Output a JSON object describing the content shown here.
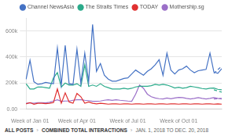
{
  "chart_data": {
    "type": "line",
    "categories": [
      null,
      "Week of Jan 01",
      null,
      null,
      null,
      null,
      null,
      null,
      null,
      null,
      null,
      null,
      null,
      "Week of Apr 01",
      null,
      null,
      null,
      null,
      null,
      null,
      null,
      null,
      null,
      null,
      null,
      null,
      "Week of Jul 01",
      null,
      null,
      null,
      null,
      null,
      null,
      null,
      null,
      null,
      null,
      null,
      null,
      "Week of Oct 01",
      null,
      null,
      null,
      null,
      null,
      null,
      null,
      null,
      null,
      null,
      null
    ],
    "series": [
      {
        "name": "Channel NewsAsia",
        "color": "#4472c4",
        "line_style": "solid",
        "values": [
          230000,
          375000,
          210000,
          190000,
          195000,
          205000,
          200000,
          195000,
          470000,
          185000,
          490000,
          195000,
          190000,
          460000,
          200000,
          430000,
          210000,
          650000,
          290000,
          350000,
          260000,
          230000,
          215000,
          215000,
          225000,
          235000,
          240000,
          270000,
          300000,
          280000,
          260000,
          290000,
          310000,
          340000,
          380000,
          260000,
          430000,
          300000,
          270000,
          300000,
          310000,
          330000,
          300000,
          280000,
          295000,
          300000,
          305000,
          430000,
          285000,
          275000,
          310000
        ]
      },
      {
        "name": "The Straits Times",
        "color": "#2aaa8a",
        "line_style": "solid",
        "values": [
          195000,
          155000,
          155000,
          170000,
          170000,
          165000,
          160000,
          240000,
          280000,
          170000,
          200000,
          185000,
          185000,
          195000,
          175000,
          340000,
          175000,
          185000,
          175000,
          195000,
          175000,
          165000,
          155000,
          155000,
          155000,
          160000,
          155000,
          160000,
          170000,
          175000,
          175000,
          175000,
          180000,
          190000,
          185000,
          190000,
          185000,
          175000,
          162000,
          168000,
          160000,
          165000,
          175000,
          170000,
          165000,
          158000,
          155000,
          160000,
          162000,
          152000,
          148000
        ]
      },
      {
        "name": "TODAY",
        "color": "#e03030",
        "line_style": "solid",
        "values": [
          40000,
          50000,
          38000,
          45000,
          45000,
          42000,
          45000,
          50000,
          155000,
          45000,
          125000,
          55000,
          45000,
          120000,
          95000,
          45000,
          55000,
          45000,
          40000,
          45000,
          42000,
          38000,
          40000,
          40000,
          38000,
          40000,
          40000,
          38000,
          40000,
          40000,
          38000,
          40000,
          40000,
          38000,
          40000,
          40000,
          38000,
          40000,
          40000,
          38000,
          40000,
          40000,
          38000,
          40000,
          40000,
          38000,
          40000,
          40000,
          38000,
          40000,
          38000
        ]
      },
      {
        "name": "Mothership.sg",
        "color": "#9b6fc8",
        "line_style": "solid",
        "values": [
          45000,
          48000,
          45000,
          50000,
          50000,
          48000,
          52000,
          62000,
          72000,
          60000,
          62000,
          62000,
          68000,
          72000,
          72000,
          68000,
          65000,
          60000,
          60000,
          62000,
          68000,
          72000,
          68000,
          72000,
          68000,
          65000,
          62000,
          60000,
          115000,
          185000,
          160000,
          115000,
          95000,
          85000,
          80000,
          78000,
          85000,
          80000,
          85000,
          90000,
          88000,
          82000,
          78000,
          82000,
          88000,
          82000,
          78000,
          82000,
          88000,
          82000,
          78000
        ]
      },
      {
        "color": "#4472c4",
        "line_style": "dashed",
        "values": [
          null,
          null,
          null,
          null,
          null,
          null,
          null,
          null,
          null,
          null,
          null,
          null,
          null,
          null,
          null,
          null,
          null,
          null,
          null,
          null,
          null,
          null,
          null,
          null,
          null,
          null,
          null,
          null,
          null,
          null,
          null,
          null,
          null,
          null,
          null,
          null,
          null,
          null,
          null,
          null,
          null,
          null,
          null,
          null,
          null,
          null,
          null,
          null,
          275000,
          null,
          330000
        ]
      },
      {
        "color": "#2aaa8a",
        "line_style": "dashed",
        "values": [
          null,
          null,
          null,
          null,
          null,
          null,
          null,
          null,
          null,
          null,
          null,
          null,
          null,
          null,
          null,
          null,
          null,
          null,
          null,
          null,
          null,
          null,
          null,
          null,
          null,
          null,
          null,
          null,
          null,
          null,
          null,
          null,
          null,
          null,
          null,
          null,
          null,
          null,
          null,
          null,
          null,
          null,
          null,
          null,
          null,
          null,
          null,
          null,
          148000,
          null,
          130000
        ]
      },
      {
        "color": "#9b6fc8",
        "line_style": "dashed",
        "values": [
          null,
          null,
          null,
          null,
          null,
          null,
          null,
          null,
          null,
          null,
          null,
          null,
          null,
          null,
          null,
          null,
          null,
          null,
          null,
          null,
          null,
          null,
          null,
          null,
          null,
          null,
          null,
          null,
          null,
          null,
          null,
          null,
          null,
          null,
          null,
          null,
          null,
          null,
          null,
          null,
          null,
          null,
          null,
          null,
          null,
          null,
          null,
          null,
          78000,
          null,
          82000
        ]
      }
    ],
    "ylim": [
      0,
      700000
    ],
    "yticks": [
      {
        "value": 0,
        "label": "0.00"
      },
      {
        "value": 200000,
        "label": "200k"
      },
      {
        "value": 400000,
        "label": "400k"
      },
      {
        "value": 600000,
        "label": "600k"
      }
    ],
    "grid": true,
    "legend": "top",
    "annotations": [
      "ALL POSTS",
      "›",
      "COMBINED TOTAL INTERACTIONS",
      "›",
      "JAN. 1, 2018 TO DEC. 20, 2018"
    ]
  }
}
